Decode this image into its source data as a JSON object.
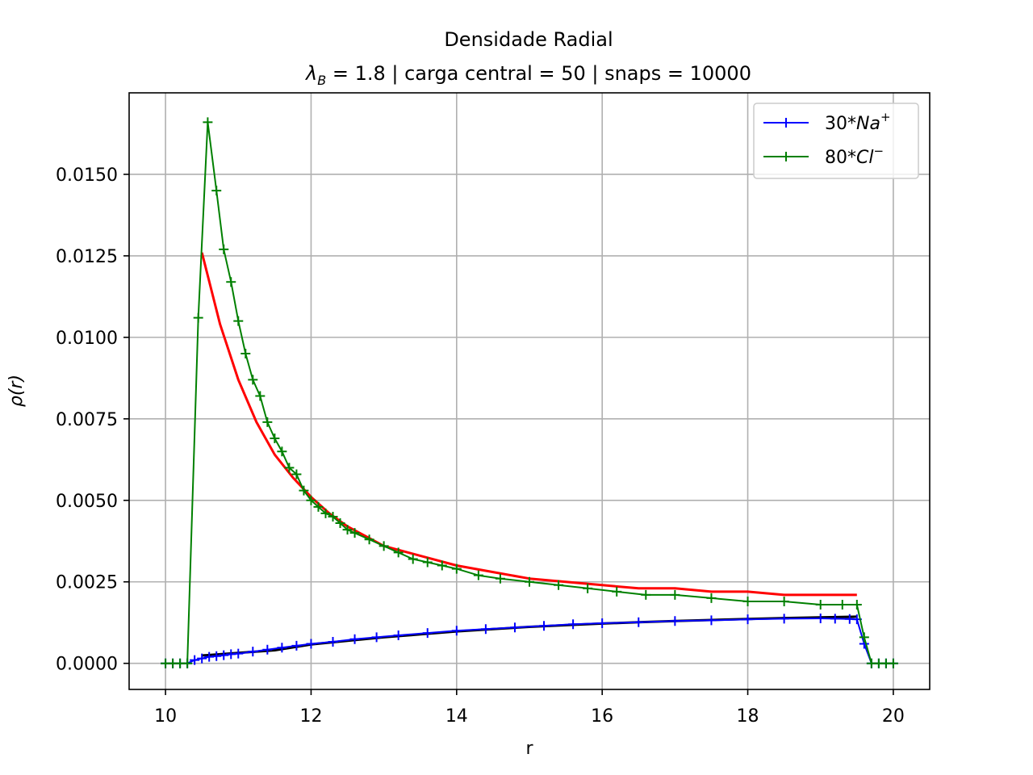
{
  "chart_data": {
    "type": "line",
    "title": "Densidade Radial",
    "subtitle_parts": {
      "lambda": "λ",
      "lambda_sub": "B",
      "rest": " = 1.8 | carga central = 50 | snaps = 10000"
    },
    "xlabel": "r",
    "ylabel": "ρ(r)",
    "xlim": [
      9.5,
      20.5
    ],
    "ylim": [
      -0.0008,
      0.0175
    ],
    "x_ticks": [
      10,
      12,
      14,
      16,
      18,
      20
    ],
    "x_tick_labels": [
      "10",
      "12",
      "14",
      "16",
      "18",
      "20"
    ],
    "y_ticks": [
      0,
      0.0025,
      0.005,
      0.0075,
      0.01,
      0.0125,
      0.015
    ],
    "y_tick_labels": [
      "0.0000",
      "0.0025",
      "0.0050",
      "0.0075",
      "0.0100",
      "0.0125",
      "0.0150"
    ],
    "grid": true,
    "legend_position": "top-right",
    "series": [
      {
        "name": "30*Na+",
        "legend_base": "30*",
        "legend_ital": "Na",
        "legend_sup": "+",
        "color": "#0000ff",
        "marker": "plus",
        "x": [
          10.0,
          10.1,
          10.2,
          10.3,
          10.4,
          10.5,
          10.6,
          10.7,
          10.8,
          10.9,
          11.0,
          11.2,
          11.4,
          11.6,
          11.8,
          12.0,
          12.3,
          12.6,
          12.9,
          13.2,
          13.6,
          14.0,
          14.4,
          14.8,
          15.2,
          15.6,
          16.0,
          16.5,
          17.0,
          17.5,
          18.0,
          18.5,
          19.0,
          19.2,
          19.4,
          19.5,
          19.6,
          19.7,
          19.8,
          19.9,
          20.0
        ],
        "y": [
          0,
          0,
          0,
          0,
          0.0001,
          0.00015,
          0.0002,
          0.00022,
          0.00025,
          0.00028,
          0.0003,
          0.00036,
          0.00042,
          0.00048,
          0.00054,
          0.0006,
          0.00066,
          0.00074,
          0.0008,
          0.00086,
          0.00093,
          0.001,
          0.00105,
          0.0011,
          0.00115,
          0.0012,
          0.00123,
          0.00126,
          0.0013,
          0.00132,
          0.00135,
          0.00137,
          0.00138,
          0.00137,
          0.00136,
          0.00135,
          0.0006,
          0,
          0,
          0,
          0
        ]
      },
      {
        "name": "80*Cl-",
        "legend_base": "80*",
        "legend_ital": "Cl",
        "legend_sup": "−",
        "color": "#008000",
        "marker": "plus",
        "x": [
          10.0,
          10.1,
          10.2,
          10.3,
          10.45,
          10.58,
          10.7,
          10.8,
          10.9,
          11.0,
          11.1,
          11.2,
          11.3,
          11.4,
          11.5,
          11.6,
          11.7,
          11.8,
          11.9,
          12.0,
          12.1,
          12.2,
          12.3,
          12.4,
          12.5,
          12.6,
          12.8,
          13.0,
          13.2,
          13.4,
          13.6,
          13.8,
          14.0,
          14.3,
          14.6,
          15.0,
          15.4,
          15.8,
          16.2,
          16.6,
          17.0,
          17.5,
          18.0,
          18.5,
          19.0,
          19.3,
          19.5,
          19.6,
          19.7,
          19.8,
          19.9,
          20.0
        ],
        "y": [
          0,
          0,
          0,
          0,
          0.0106,
          0.0166,
          0.0145,
          0.0127,
          0.0117,
          0.0105,
          0.0095,
          0.0087,
          0.0082,
          0.0074,
          0.0069,
          0.0065,
          0.006,
          0.0058,
          0.0053,
          0.005,
          0.0048,
          0.0046,
          0.0045,
          0.0043,
          0.0041,
          0.004,
          0.0038,
          0.0036,
          0.0034,
          0.0032,
          0.0031,
          0.003,
          0.0029,
          0.0027,
          0.0026,
          0.0025,
          0.0024,
          0.0023,
          0.0022,
          0.0021,
          0.0021,
          0.002,
          0.0019,
          0.0019,
          0.0018,
          0.0018,
          0.0018,
          0.0008,
          0,
          0,
          0,
          0
        ]
      },
      {
        "name": "",
        "color": "#ff0000",
        "marker": "none",
        "x": [
          10.5,
          10.75,
          11.0,
          11.25,
          11.5,
          11.75,
          12.0,
          12.25,
          12.5,
          12.75,
          13.0,
          13.5,
          14.0,
          14.5,
          15.0,
          15.5,
          16.0,
          16.5,
          17.0,
          17.5,
          18.0,
          18.5,
          19.0,
          19.5
        ],
        "y": [
          0.0126,
          0.0104,
          0.0087,
          0.0074,
          0.0064,
          0.0057,
          0.0051,
          0.0046,
          0.0042,
          0.0039,
          0.0036,
          0.0033,
          0.003,
          0.0028,
          0.0026,
          0.0025,
          0.0024,
          0.0023,
          0.0023,
          0.0022,
          0.0022,
          0.0021,
          0.0021,
          0.0021
        ]
      },
      {
        "name": "",
        "color": "#000000",
        "marker": "none",
        "x": [
          10.5,
          11.0,
          11.5,
          12.0,
          12.5,
          13.0,
          13.5,
          14.0,
          14.5,
          15.0,
          15.5,
          16.0,
          16.5,
          17.0,
          17.5,
          18.0,
          18.5,
          19.0,
          19.5
        ],
        "y": [
          0.00024,
          0.00032,
          0.0004,
          0.00058,
          0.00069,
          0.0008,
          0.00089,
          0.00098,
          0.00105,
          0.00112,
          0.00117,
          0.00122,
          0.00126,
          0.0013,
          0.00133,
          0.00136,
          0.00139,
          0.00141,
          0.00143
        ]
      }
    ]
  }
}
